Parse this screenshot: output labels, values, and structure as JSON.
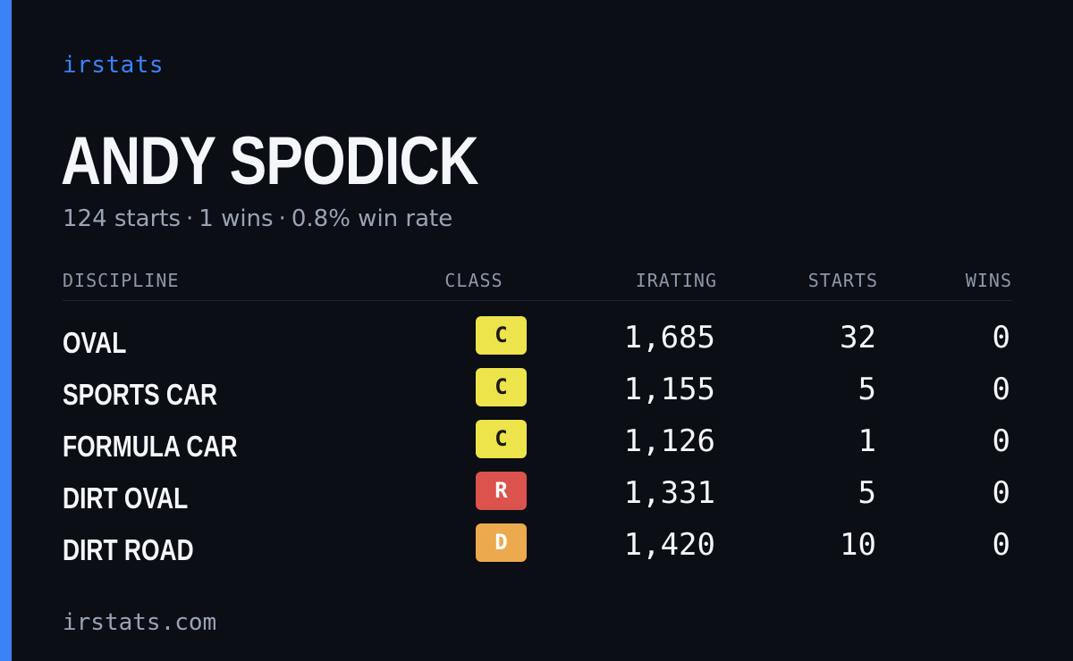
{
  "brand": "irstats",
  "driver": {
    "name": "ANDY SPODICK",
    "starts_text": "124 starts",
    "wins_text": "1 wins",
    "win_rate_text": "0.8% win rate",
    "separator": "·"
  },
  "table": {
    "headers": {
      "discipline": "DISCIPLINE",
      "class": "CLASS",
      "irating": "IRATING",
      "starts": "STARTS",
      "wins": "WINS"
    },
    "rows": [
      {
        "discipline": "OVAL",
        "class": "C",
        "class_bg": "#ede34a",
        "class_fg": "#1a1a1a",
        "irating": "1,685",
        "starts": "32",
        "wins": "0"
      },
      {
        "discipline": "SPORTS CAR",
        "class": "C",
        "class_bg": "#ede34a",
        "class_fg": "#1a1a1a",
        "irating": "1,155",
        "starts": "5",
        "wins": "0"
      },
      {
        "discipline": "FORMULA CAR",
        "class": "C",
        "class_bg": "#ede34a",
        "class_fg": "#1a1a1a",
        "irating": "1,126",
        "starts": "1",
        "wins": "0"
      },
      {
        "discipline": "DIRT OVAL",
        "class": "R",
        "class_bg": "#dc524d",
        "class_fg": "#ffffff",
        "irating": "1,331",
        "starts": "5",
        "wins": "0"
      },
      {
        "discipline": "DIRT ROAD",
        "class": "D",
        "class_bg": "#eca94d",
        "class_fg": "#ffffff",
        "irating": "1,420",
        "starts": "10",
        "wins": "0"
      }
    ]
  },
  "footer": "irstats.com",
  "colors": {
    "background": "#0b0e15",
    "accent": "#3b82f6"
  }
}
